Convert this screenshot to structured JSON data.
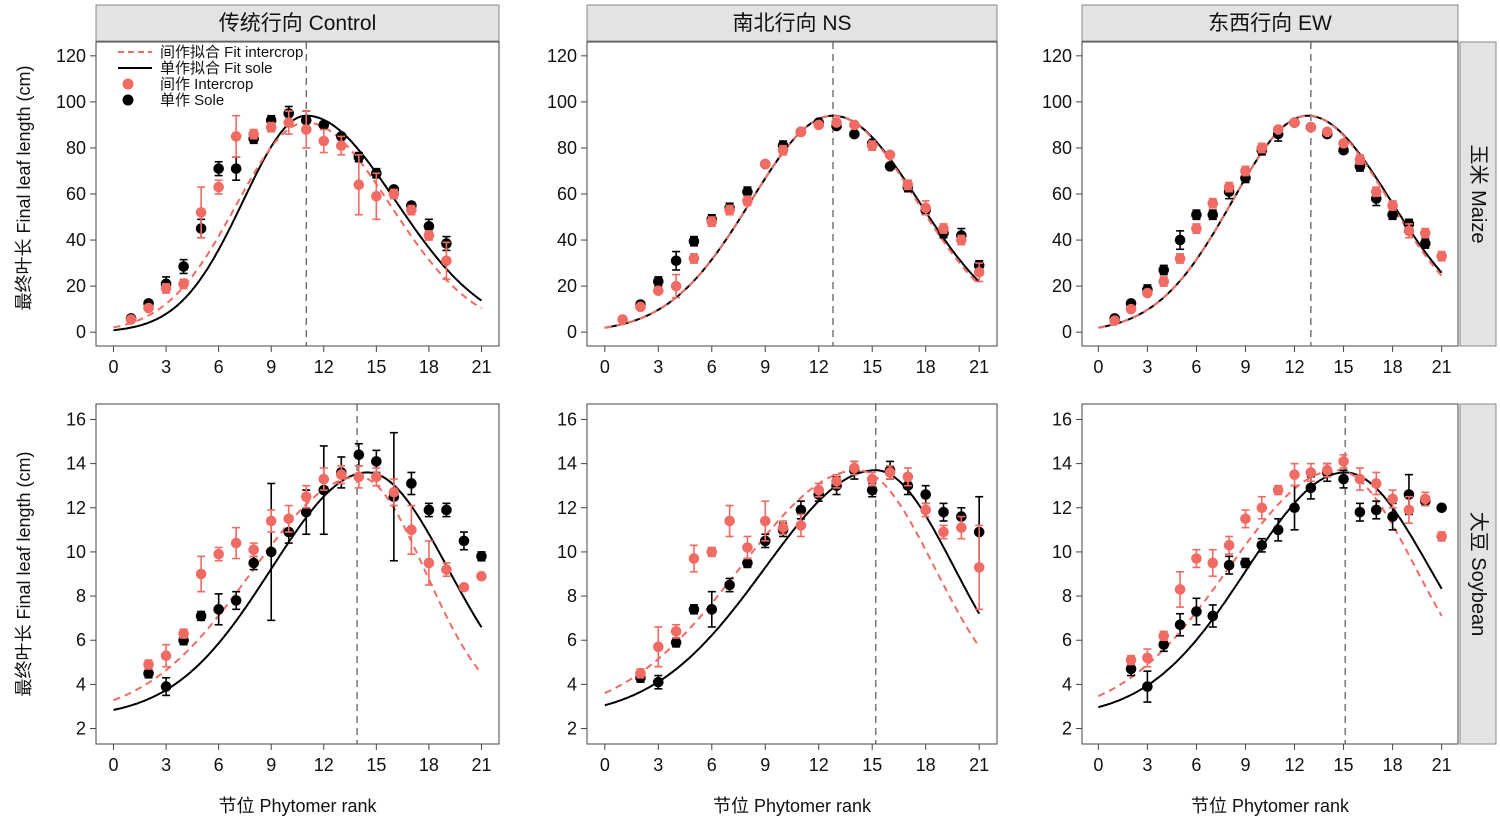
{
  "colors": {
    "intercrop": "#f06b63",
    "sole": "#000000",
    "strip": "#e3e3e3",
    "vline": "#555555"
  },
  "x_ticks": [
    0,
    3,
    6,
    9,
    12,
    15,
    18,
    21
  ],
  "x_label": "节位 Phytomer rank",
  "row_labels": [
    "最终叶长 Final leaf length (cm)",
    "最终叶长 Final leaf length (cm)"
  ],
  "col_titles": [
    "传统行向 Control",
    "南北行向 NS",
    "东西行向 EW"
  ],
  "row_strips": [
    "玉米 Maize",
    "大豆 Soybean"
  ],
  "legend": [
    {
      "kind": "dashed-line",
      "label": "间作拟合 Fit intercrop",
      "color": "#f06b63"
    },
    {
      "kind": "solid-line",
      "label": "单作拟合 Fit sole",
      "color": "#000000"
    },
    {
      "kind": "point",
      "label": "间作 Intercrop",
      "color": "#f06b63"
    },
    {
      "kind": "point",
      "label": "单作 Sole",
      "color": "#000000"
    }
  ],
  "chart_data": [
    {
      "type": "scatter",
      "row": 0,
      "col": 0,
      "xlim": [
        -1,
        22
      ],
      "ylim": [
        -6,
        126
      ],
      "y_ticks": [
        0,
        20,
        40,
        60,
        80,
        100,
        120
      ],
      "vline": 11,
      "fit_sole": {
        "peak": 94,
        "peak_x": 11,
        "base": 0,
        "w_left": 3.6,
        "w_right": 5.1
      },
      "fit_intercrop": {
        "peak": 91,
        "peak_x": 11,
        "base": 0,
        "w_left": 4.0,
        "w_right": 4.8
      },
      "sole": {
        "x": [
          1,
          2,
          3,
          4,
          5,
          6,
          7,
          8,
          9,
          10,
          11,
          12,
          13,
          14,
          15,
          16,
          17,
          18,
          19
        ],
        "y": [
          6,
          12.5,
          21,
          28.5,
          45,
          71,
          71,
          84,
          92,
          95,
          92,
          90,
          85,
          76,
          69,
          62,
          55,
          46,
          38.5
        ],
        "err": [
          1,
          1,
          3,
          3,
          4,
          3,
          5,
          2,
          2,
          3,
          4,
          1,
          1,
          2,
          2,
          1,
          1,
          3,
          3
        ]
      },
      "intercrop": {
        "x": [
          1,
          2,
          3,
          4,
          5,
          6,
          7,
          8,
          9,
          10,
          11,
          12,
          13,
          14,
          15,
          16,
          17,
          18,
          19
        ],
        "y": [
          5.5,
          10.5,
          19,
          21,
          52,
          63,
          85,
          86,
          89,
          91,
          88,
          83,
          81,
          64,
          59,
          60,
          53,
          42,
          31
        ],
        "err": [
          1,
          1,
          2,
          2,
          11,
          3,
          9,
          2,
          2,
          5,
          8,
          5,
          4,
          13,
          10,
          2,
          2,
          2,
          8
        ]
      }
    },
    {
      "type": "scatter",
      "row": 0,
      "col": 1,
      "xlim": [
        -1,
        22
      ],
      "ylim": [
        -6,
        126
      ],
      "y_ticks": [
        0,
        20,
        40,
        60,
        80,
        100,
        120
      ],
      "vline": 12.8,
      "fit_sole": {
        "peak": 94,
        "peak_x": 12.8,
        "base": 0,
        "w_left": 4.6,
        "w_right": 4.8
      },
      "fit_intercrop": {
        "peak": 94,
        "peak_x": 12.8,
        "base": 0,
        "w_left": 4.6,
        "w_right": 4.7
      },
      "sole": {
        "x": [
          2,
          3,
          4,
          5,
          6,
          7,
          8,
          9,
          10,
          11,
          12,
          13,
          14,
          15,
          16,
          17,
          18,
          19,
          20,
          21
        ],
        "y": [
          12,
          22,
          31,
          39.5,
          49,
          54,
          61,
          73,
          81,
          87,
          91,
          89.5,
          86,
          82,
          72,
          63,
          53,
          43,
          42,
          29
        ],
        "err": [
          1,
          2,
          4,
          2,
          2,
          2,
          2,
          1,
          2,
          1,
          1,
          1,
          1,
          1,
          1,
          2,
          2,
          2,
          3,
          2
        ]
      },
      "intercrop": {
        "x": [
          1,
          2,
          3,
          4,
          5,
          6,
          7,
          8,
          9,
          10,
          11,
          12,
          13,
          14,
          15,
          16,
          17,
          18,
          19,
          20,
          21
        ],
        "y": [
          5.5,
          11,
          18,
          20,
          32,
          48,
          53,
          57,
          73,
          79,
          87,
          90,
          91,
          90,
          81,
          77,
          64,
          54,
          45,
          40,
          26
        ],
        "err": [
          1,
          1,
          1,
          5,
          2,
          2,
          2,
          2,
          1,
          2,
          1,
          1,
          1,
          1,
          2,
          1,
          2,
          3,
          2,
          2,
          4
        ]
      }
    },
    {
      "type": "scatter",
      "row": 0,
      "col": 2,
      "xlim": [
        -1,
        22
      ],
      "ylim": [
        -6,
        126
      ],
      "y_ticks": [
        0,
        20,
        40,
        60,
        80,
        100,
        120
      ],
      "vline": 13,
      "fit_sole": {
        "peak": 94,
        "peak_x": 12.8,
        "base": 0,
        "w_left": 4.6,
        "w_right": 5.1
      },
      "fit_intercrop": {
        "peak": 94,
        "peak_x": 12.8,
        "base": 0,
        "w_left": 4.6,
        "w_right": 5.0
      },
      "sole": {
        "x": [
          1,
          2,
          3,
          4,
          5,
          6,
          7,
          8,
          9,
          10,
          11,
          12,
          13,
          14,
          15,
          16,
          17,
          18,
          19,
          20
        ],
        "y": [
          6,
          12.5,
          18.5,
          27,
          40,
          51,
          51,
          61,
          67,
          79,
          86,
          91,
          89,
          86,
          79,
          72,
          58,
          51,
          47,
          38.5
        ],
        "err": [
          1,
          1,
          2,
          2,
          4,
          2,
          2,
          3,
          2,
          2,
          3,
          1,
          1,
          1,
          1,
          2,
          3,
          2,
          2,
          2
        ]
      },
      "intercrop": {
        "x": [
          1,
          2,
          3,
          4,
          5,
          6,
          7,
          8,
          9,
          10,
          11,
          12,
          13,
          14,
          15,
          16,
          17,
          18,
          19,
          20,
          21
        ],
        "y": [
          5,
          10,
          17,
          22,
          32,
          45,
          56,
          63,
          70,
          80,
          88,
          91,
          89,
          87,
          82,
          75,
          61,
          55,
          44,
          43,
          33
        ],
        "err": [
          1,
          1,
          1,
          2,
          2,
          2,
          2,
          2,
          2,
          2,
          1,
          1,
          1,
          1,
          1,
          2,
          2,
          2,
          3,
          2,
          2
        ]
      }
    },
    {
      "type": "scatter",
      "row": 1,
      "col": 0,
      "xlim": [
        -1,
        22
      ],
      "ylim": [
        1.3,
        16.7
      ],
      "y_ticks": [
        2,
        4,
        6,
        8,
        10,
        12,
        14,
        16
      ],
      "vline": 13.9,
      "fit_sole": {
        "peak": 13.6,
        "peak_x": 14.5,
        "base": 2.5,
        "w_left": 5.5,
        "w_right": 4.6
      },
      "fit_intercrop": {
        "peak": 13.4,
        "peak_x": 14.0,
        "base": 2.5,
        "w_left": 6.1,
        "w_right": 3.8
      },
      "sole": {
        "x": [
          2,
          3,
          4,
          5,
          6,
          7,
          8,
          9,
          10,
          11,
          12,
          13,
          14,
          15,
          16,
          17,
          18,
          19,
          20,
          21
        ],
        "y": [
          4.5,
          3.9,
          6,
          7.1,
          7.4,
          7.8,
          9.5,
          10,
          10.9,
          11.8,
          12.8,
          13.6,
          14.4,
          14.1,
          12.5,
          13.1,
          11.9,
          11.9,
          10.5,
          9.8
        ],
        "err": [
          0.2,
          0.4,
          0.2,
          0.2,
          0.7,
          0.4,
          0.3,
          3.1,
          0.5,
          1.0,
          2.0,
          0.7,
          0.5,
          0.5,
          2.9,
          0.5,
          0.3,
          0.3,
          0.4,
          0.2
        ]
      },
      "intercrop": {
        "x": [
          2,
          3,
          4,
          5,
          6,
          7,
          8,
          9,
          10,
          11,
          12,
          13,
          14,
          15,
          16,
          17,
          18,
          19,
          20,
          21
        ],
        "y": [
          4.9,
          5.3,
          6.3,
          9,
          9.9,
          10.4,
          10.1,
          11.4,
          11.5,
          12.5,
          13.3,
          13.5,
          13.4,
          13.4,
          12.7,
          11,
          9.5,
          9.2,
          8.4,
          8.9
        ],
        "err": [
          0.2,
          0.5,
          0.2,
          0.8,
          0.3,
          0.7,
          0.3,
          0.5,
          0.6,
          0.5,
          0.5,
          0.4,
          0.5,
          0.4,
          0.6,
          1.1,
          1.0,
          0.3,
          0.1,
          0.1
        ]
      }
    },
    {
      "type": "scatter",
      "row": 1,
      "col": 1,
      "xlim": [
        -1,
        22
      ],
      "ylim": [
        1.3,
        16.7
      ],
      "y_ticks": [
        2,
        4,
        6,
        8,
        10,
        12,
        14,
        16
      ],
      "vline": 15.2,
      "fit_sole": {
        "peak": 13.7,
        "peak_x": 15.2,
        "base": 2.5,
        "w_left": 6.2,
        "w_right": 4.4
      },
      "fit_intercrop": {
        "peak": 13.7,
        "peak_x": 14.2,
        "base": 2.5,
        "w_left": 6.6,
        "w_right": 4.3
      },
      "sole": {
        "x": [
          2,
          3,
          4,
          5,
          6,
          7,
          8,
          9,
          10,
          11,
          12,
          13,
          14,
          15,
          16,
          17,
          18,
          19,
          20,
          21
        ],
        "y": [
          4.3,
          4.1,
          5.9,
          7.4,
          7.4,
          8.5,
          9.5,
          10.5,
          11,
          11.9,
          12.6,
          13,
          13.7,
          12.8,
          13.7,
          13,
          12.6,
          11.8,
          11.6,
          10.9
        ],
        "err": [
          0.2,
          0.3,
          0.2,
          0.2,
          0.8,
          0.3,
          0.2,
          0.3,
          0.3,
          0.4,
          0.3,
          0.4,
          0.4,
          0.3,
          0.4,
          0.4,
          0.4,
          0.4,
          0.4,
          1.6
        ]
      },
      "intercrop": {
        "x": [
          2,
          3,
          4,
          5,
          6,
          7,
          8,
          9,
          10,
          11,
          12,
          13,
          14,
          15,
          16,
          17,
          18,
          19,
          20,
          21
        ],
        "y": [
          4.5,
          5.7,
          6.4,
          9.7,
          10,
          11.4,
          10.2,
          11.4,
          11.1,
          11.2,
          12.8,
          13.2,
          13.8,
          13.3,
          13.6,
          13.4,
          11.9,
          10.9,
          11.1,
          9.3
        ],
        "err": [
          0.2,
          0.9,
          0.3,
          0.6,
          0.2,
          0.7,
          0.5,
          0.9,
          0.3,
          0.5,
          0.3,
          0.3,
          0.3,
          0.3,
          0.3,
          0.4,
          0.3,
          0.3,
          0.5,
          1.9
        ]
      }
    },
    {
      "type": "scatter",
      "row": 1,
      "col": 2,
      "xlim": [
        -1,
        22
      ],
      "ylim": [
        1.3,
        16.7
      ],
      "y_ticks": [
        2,
        4,
        6,
        8,
        10,
        12,
        14,
        16
      ],
      "vline": 15.1,
      "fit_sole": {
        "peak": 13.6,
        "peak_x": 15.1,
        "base": 2.5,
        "w_left": 6.0,
        "w_right": 5.2
      },
      "fit_intercrop": {
        "peak": 13.7,
        "peak_x": 14.6,
        "base": 2.5,
        "w_left": 6.6,
        "w_right": 4.8
      },
      "sole": {
        "x": [
          2,
          3,
          4,
          5,
          6,
          7,
          8,
          9,
          10,
          11,
          12,
          13,
          14,
          15,
          16,
          17,
          18,
          19,
          20,
          21
        ],
        "y": [
          4.7,
          3.9,
          5.8,
          6.7,
          7.3,
          7.1,
          9.4,
          9.5,
          10.3,
          11,
          12,
          12.9,
          13.6,
          13.3,
          11.8,
          11.9,
          11.6,
          12.6,
          12.3,
          12
        ],
        "err": [
          0.3,
          0.7,
          0.3,
          0.5,
          0.6,
          0.5,
          0.4,
          0.2,
          0.3,
          0.5,
          1.0,
          0.5,
          0.4,
          0.4,
          0.4,
          0.4,
          0.6,
          0.9,
          0.2,
          0.1
        ]
      },
      "intercrop": {
        "x": [
          2,
          3,
          4,
          5,
          6,
          7,
          8,
          9,
          10,
          11,
          12,
          13,
          14,
          15,
          16,
          17,
          18,
          19,
          20,
          21
        ],
        "y": [
          5.1,
          5.2,
          6.2,
          8.3,
          9.7,
          9.5,
          10.3,
          11.5,
          12,
          12.8,
          13.5,
          13.6,
          13.7,
          14.1,
          13.3,
          13.1,
          12.4,
          11.9,
          12.4,
          10.7
        ],
        "err": [
          0.2,
          0.4,
          0.2,
          0.8,
          0.4,
          0.6,
          0.4,
          0.4,
          0.5,
          0.2,
          0.5,
          0.4,
          0.3,
          0.3,
          0.5,
          0.5,
          0.4,
          0.6,
          0.3,
          0.2
        ]
      }
    }
  ]
}
